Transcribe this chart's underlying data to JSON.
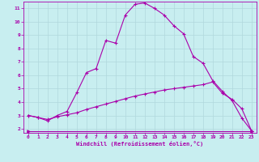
{
  "xlabel": "Windchill (Refroidissement éolien,°C)",
  "background_color": "#c8eef0",
  "line_color": "#aa00aa",
  "grid_color": "#b0d8dc",
  "xlim": [
    -0.5,
    23.5
  ],
  "ylim": [
    1.7,
    11.5
  ],
  "xticks": [
    0,
    1,
    2,
    3,
    4,
    5,
    6,
    7,
    8,
    9,
    10,
    11,
    12,
    13,
    14,
    15,
    16,
    17,
    18,
    19,
    20,
    21,
    22,
    23
  ],
  "yticks": [
    2,
    3,
    4,
    5,
    6,
    7,
    8,
    9,
    10,
    11
  ],
  "line1_x": [
    0,
    1,
    2,
    3,
    4,
    5,
    6,
    7,
    8,
    9,
    10,
    11,
    12,
    13,
    14,
    15,
    16,
    17,
    18,
    19,
    20,
    21,
    22,
    23
  ],
  "line1_y": [
    3.0,
    2.85,
    2.6,
    3.0,
    3.3,
    4.7,
    6.2,
    6.5,
    8.6,
    8.4,
    10.5,
    11.3,
    11.4,
    11.0,
    10.5,
    9.7,
    9.1,
    7.4,
    6.9,
    5.6,
    4.8,
    4.1,
    2.8,
    1.85
  ],
  "line2_x": [
    0,
    1,
    2,
    3,
    4,
    5,
    6,
    7,
    8,
    9,
    10,
    11,
    12,
    13,
    14,
    15,
    16,
    17,
    18,
    19,
    20,
    21,
    22,
    23
  ],
  "line2_y": [
    3.0,
    2.85,
    2.7,
    2.9,
    3.05,
    3.2,
    3.45,
    3.65,
    3.85,
    4.05,
    4.25,
    4.45,
    4.6,
    4.75,
    4.9,
    5.0,
    5.1,
    5.2,
    5.3,
    5.5,
    4.65,
    4.2,
    3.5,
    1.85
  ],
  "line3_x": [
    0,
    23
  ],
  "line3_y": [
    1.85,
    1.85
  ]
}
